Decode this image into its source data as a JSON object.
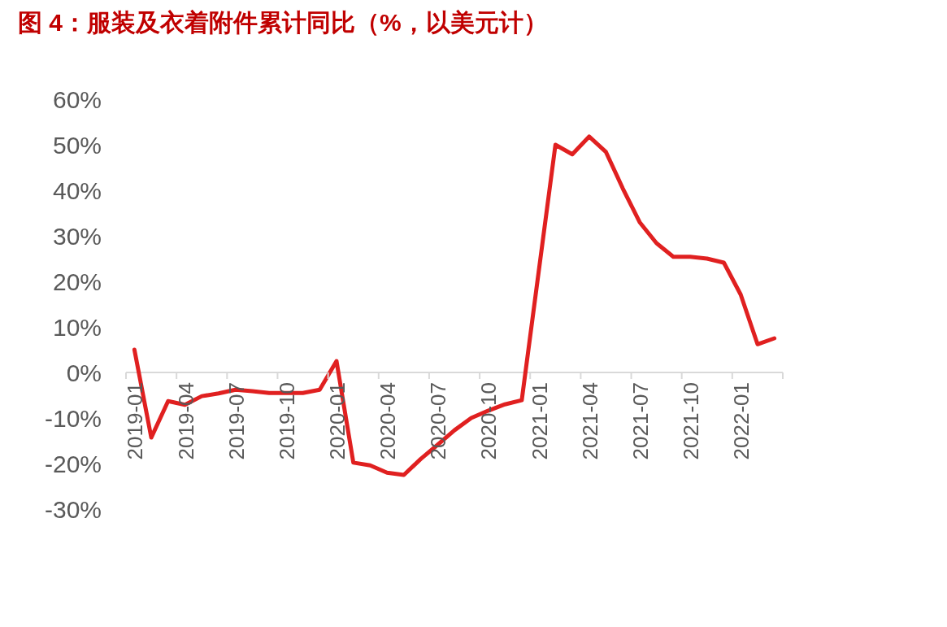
{
  "chart_data": {
    "type": "line",
    "title": "图 4：服装及衣着附件累计同比（%，以美元计）",
    "categories": [
      "2019-01",
      null,
      null,
      "2019-04",
      null,
      null,
      "2019-07",
      null,
      null,
      "2019-10",
      null,
      null,
      "2020-01",
      null,
      null,
      "2020-04",
      null,
      null,
      "2020-07",
      null,
      null,
      "2020-10",
      null,
      null,
      "2021-01",
      null,
      null,
      "2021-04",
      null,
      null,
      "2021-07",
      null,
      null,
      "2021-10",
      null,
      null,
      "2022-01",
      null,
      null
    ],
    "series": [
      {
        "color": "#e02020",
        "values": [
          5.0,
          -14.3,
          -6.3,
          -7.1,
          -5.2,
          -4.6,
          -3.8,
          -4.1,
          -4.5,
          -4.5,
          -4.5,
          -3.8,
          2.5,
          -19.8,
          -20.4,
          -22,
          -22.5,
          -19,
          -15.9,
          -12.7,
          -10,
          -8.4,
          -7,
          -6.1,
          22,
          50,
          47.9,
          51.8,
          48.4,
          40.4,
          33,
          28.4,
          25.4,
          25.4,
          25,
          24.1,
          17.1,
          6.2,
          7.5
        ]
      }
    ],
    "ylim": [
      -30,
      60
    ],
    "yticks": [
      {
        "value": -30,
        "label": "-30%"
      },
      {
        "value": -20,
        "label": "-20%"
      },
      {
        "value": -10,
        "label": "-10%"
      },
      {
        "value": 0,
        "label": "0%"
      },
      {
        "value": 10,
        "label": "10%"
      },
      {
        "value": 20,
        "label": "20%"
      },
      {
        "value": 30,
        "label": "30%"
      },
      {
        "value": 40,
        "label": "40%"
      },
      {
        "value": 50,
        "label": "50%"
      },
      {
        "value": 60,
        "label": "60%"
      }
    ],
    "tick_labels": true
  }
}
